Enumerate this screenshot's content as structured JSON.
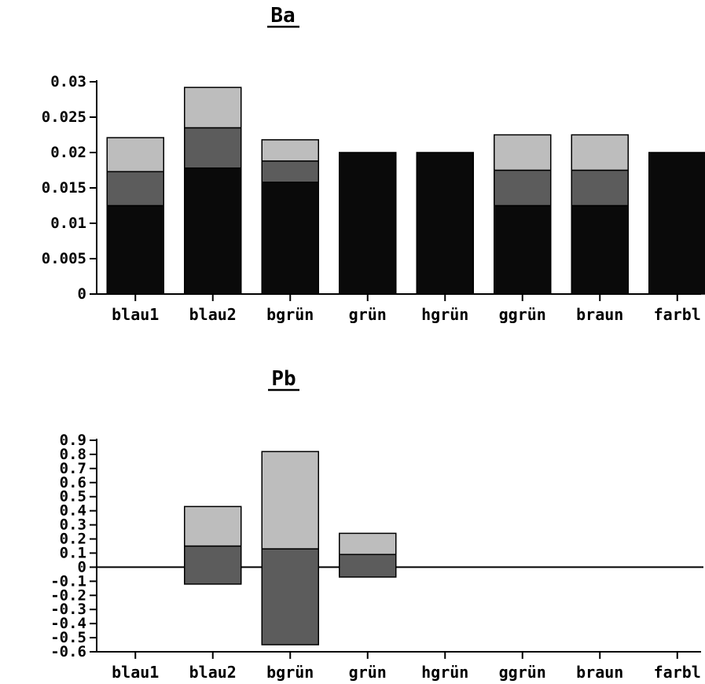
{
  "chart_data": [
    {
      "type": "bar",
      "stacked": true,
      "title": "Ba",
      "categories": [
        "blau1",
        "blau2",
        "bgrün",
        "grün",
        "hgrün",
        "ggrün",
        "braun",
        "farbl"
      ],
      "series": [
        {
          "values": [
            0.0125,
            0.0178,
            0.0158,
            0.02,
            0.02,
            0.0125,
            0.0125,
            0.02
          ]
        },
        {
          "values": [
            0.0048,
            0.0057,
            0.003,
            0.0,
            0.0,
            0.005,
            0.005,
            0.0
          ]
        },
        {
          "values": [
            0.0048,
            0.0057,
            0.003,
            0.0,
            0.0,
            0.005,
            0.005,
            0.0
          ]
        }
      ],
      "ylim": [
        0,
        0.03
      ],
      "yticks": [
        "0",
        "0.005",
        "0.01",
        "0.015",
        "0.02",
        "0.025",
        "0.03"
      ],
      "ytick_values": [
        0,
        0.005,
        0.01,
        0.015,
        0.02,
        0.025,
        0.03
      ],
      "grid": false,
      "colors": {
        "dark": "#0a0a0a",
        "medium": "#5c5c5c",
        "light": "#bdbdbd"
      }
    },
    {
      "type": "bar",
      "title": "Pb",
      "categories": [
        "blau1",
        "blau2",
        "bgrün",
        "grün",
        "hgrün",
        "ggrün",
        "braun",
        "farbl"
      ],
      "bars": [
        null,
        {
          "low": -0.12,
          "mid": 0.15,
          "high": 0.43
        },
        {
          "low": -0.55,
          "mid": 0.13,
          "high": 0.82
        },
        {
          "low": -0.07,
          "mid": 0.09,
          "high": 0.24
        },
        null,
        null,
        null,
        null
      ],
      "ylim": [
        -0.6,
        0.9
      ],
      "yticks": [
        "-0.6",
        "-0.5",
        "-0.4",
        "-0.3",
        "-0.2",
        "-0.1",
        "0",
        "0.1",
        "0.2",
        "0.3",
        "0.4",
        "0.5",
        "0.6",
        "0.7",
        "0.8",
        "0.9"
      ],
      "ytick_values": [
        -0.6,
        -0.5,
        -0.4,
        -0.3,
        -0.2,
        -0.1,
        0,
        0.1,
        0.2,
        0.3,
        0.4,
        0.5,
        0.6,
        0.7,
        0.8,
        0.9
      ],
      "grid": false,
      "colors": {
        "medium": "#5c5c5c",
        "light": "#bdbdbd"
      }
    }
  ]
}
